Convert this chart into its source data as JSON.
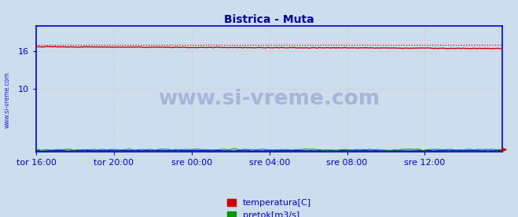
{
  "title": "Bistrica - Muta",
  "title_color": "#000099",
  "background_color": "#ccdded",
  "plot_bg_color": "#ccdded",
  "grid_color": "#ffaaaa",
  "axis_color": "#0000cc",
  "tick_label_color": "#0000cc",
  "watermark_text": "www.si-vreme.com",
  "watermark_color": "#000077",
  "watermark_alpha": 0.18,
  "side_text": "www.si-vreme.com",
  "side_color": "#0000cc",
  "xlabel_labels": [
    "tor 16:00",
    "tor 20:00",
    "sre 00:00",
    "sre 04:00",
    "sre 08:00",
    "sre 12:00"
  ],
  "ylim_min": 0,
  "ylim_max": 20,
  "ytick_shown": [
    10,
    16
  ],
  "temp_color": "#cc0000",
  "pretok_color": "#009900",
  "visina_color": "#0000cc",
  "legend_labels": [
    "temperatura[C]",
    "pretok[m3/s]"
  ],
  "legend_colors": [
    "#cc0000",
    "#009900"
  ],
  "n_points": 288,
  "temp_max_value": 17.05
}
